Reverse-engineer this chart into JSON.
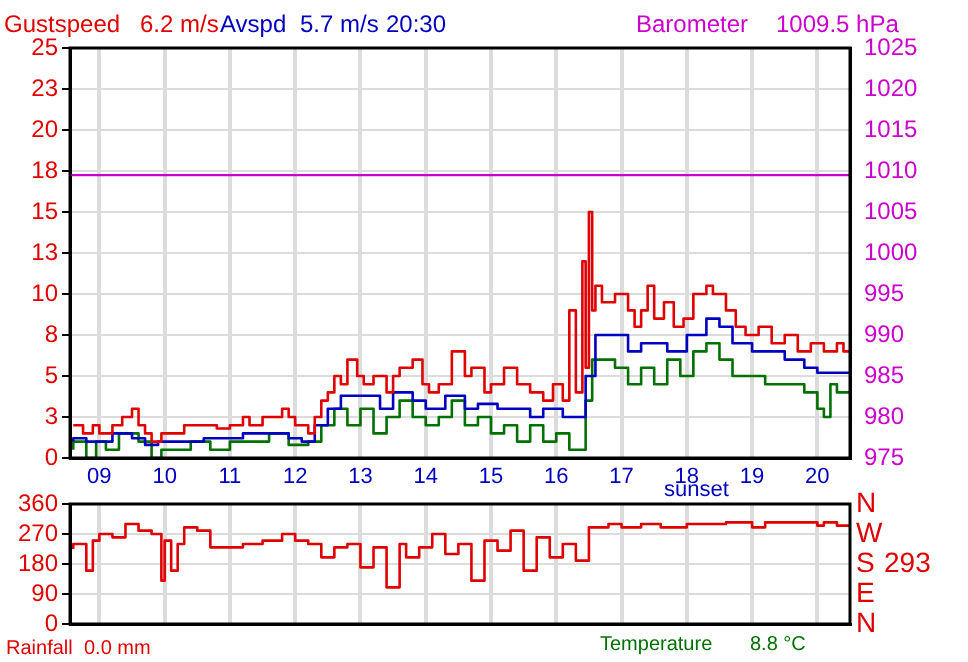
{
  "chart_data": [
    {
      "type": "step",
      "legend": "top left",
      "grid": true,
      "xlim": [
        8.55,
        20.5
      ],
      "xticks": [
        {
          "value": 9,
          "label": "09"
        },
        {
          "value": 10,
          "label": "10"
        },
        11,
        12,
        13,
        14,
        15,
        16,
        17,
        18,
        19,
        20
      ],
      "ylim": [
        0,
        25
      ],
      "yticks": [
        0,
        {
          "value": 2.5,
          "label": "3"
        },
        5,
        {
          "value": 7.5,
          "label": "8"
        },
        10,
        {
          "value": 12.5,
          "label": "13"
        },
        15,
        {
          "value": 17.5,
          "label": "18"
        },
        20,
        {
          "value": 22.5,
          "label": "23"
        },
        25
      ],
      "y2lim": [
        975,
        1025
      ],
      "y2ticks": [
        975,
        980,
        985,
        990,
        995,
        1000,
        1005,
        1010,
        1015,
        1020,
        1025
      ],
      "annotations": [
        "6.2 m/s",
        "5.7 m/s",
        "20:30",
        "1009.5 hPa",
        "sunset"
      ],
      "series": [
        {
          "name": "Gustspeed",
          "color": "#e00000",
          "x": [
            8.6,
            8.75,
            8.9,
            9.0,
            9.2,
            9.35,
            9.5,
            9.6,
            9.7,
            9.8,
            9.95,
            10.1,
            10.3,
            10.5,
            10.8,
            11.0,
            11.2,
            11.3,
            11.5,
            11.8,
            11.9,
            12.0,
            12.2,
            12.3,
            12.4,
            12.5,
            12.6,
            12.7,
            12.8,
            12.95,
            13.05,
            13.2,
            13.4,
            13.5,
            13.6,
            13.8,
            13.95,
            14.05,
            14.2,
            14.4,
            14.6,
            14.7,
            14.9,
            15.0,
            15.2,
            15.4,
            15.6,
            15.8,
            15.95,
            16.1,
            16.2,
            16.3,
            16.4,
            16.45,
            16.5,
            16.55,
            16.6,
            16.7,
            16.9,
            17.1,
            17.2,
            17.3,
            17.4,
            17.5,
            17.65,
            17.8,
            17.95,
            18.1,
            18.3,
            18.4,
            18.6,
            18.75,
            18.9,
            19.1,
            19.3,
            19.5,
            19.7,
            19.9,
            20.1,
            20.3,
            20.4,
            20.5
          ],
          "values": [
            2.0,
            2.0,
            1.5,
            2.0,
            1.5,
            2.0,
            2.5,
            3.0,
            2.0,
            1.5,
            1.0,
            1.5,
            1.5,
            2.0,
            2.0,
            1.8,
            2.0,
            2.5,
            2.0,
            2.5,
            3.0,
            2.5,
            2.0,
            1.5,
            2.5,
            3.5,
            4.0,
            5.0,
            4.5,
            6.0,
            5.0,
            4.5,
            5.0,
            4.0,
            5.0,
            5.5,
            6.0,
            4.5,
            4.0,
            4.5,
            6.5,
            5.0,
            5.5,
            4.0,
            4.5,
            5.5,
            4.5,
            4.0,
            3.5,
            4.5,
            3.5,
            9.0,
            4.0,
            12.0,
            5.5,
            15.0,
            9.0,
            10.5,
            9.5,
            10.0,
            9.0,
            8.0,
            9.0,
            10.5,
            8.5,
            9.5,
            8.0,
            8.5,
            10.0,
            10.5,
            10.0,
            9.0,
            8.0,
            7.5,
            8.0,
            7.0,
            7.5,
            6.5,
            7.0,
            6.5,
            7.0,
            6.5
          ]
        },
        {
          "name": "Avspd",
          "color": "#0000c0",
          "x": [
            8.6,
            8.8,
            9.2,
            9.5,
            9.7,
            9.9,
            10.2,
            10.6,
            11.2,
            11.6,
            11.9,
            12.1,
            12.3,
            12.5,
            12.7,
            12.9,
            13.3,
            13.5,
            13.8,
            14.0,
            14.3,
            14.6,
            14.8,
            15.1,
            15.3,
            15.6,
            15.8,
            16.1,
            16.3,
            16.45,
            16.6,
            16.8,
            17.1,
            17.3,
            17.5,
            17.7,
            18.0,
            18.3,
            18.5,
            18.7,
            19.0,
            19.2,
            19.5,
            19.8,
            20.0,
            20.2,
            20.5
          ],
          "values": [
            1.0,
            1.2,
            1.0,
            1.5,
            1.2,
            0.8,
            1.0,
            1.0,
            1.2,
            1.5,
            1.5,
            1.2,
            1.0,
            2.0,
            3.0,
            3.8,
            3.8,
            3.0,
            4.0,
            3.5,
            3.0,
            3.8,
            3.0,
            3.3,
            3.0,
            3.0,
            2.5,
            3.0,
            2.5,
            2.5,
            5.0,
            7.5,
            7.5,
            6.5,
            7.0,
            7.0,
            6.5,
            7.5,
            8.5,
            8.0,
            7.0,
            6.5,
            6.5,
            6.0,
            5.5,
            5.2,
            5.2
          ]
        },
        {
          "color": "#007000",
          "x": [
            8.6,
            8.8,
            8.95,
            9.1,
            9.3,
            9.6,
            9.8,
            9.95,
            10.1,
            10.4,
            10.7,
            11.0,
            11.3,
            11.6,
            11.9,
            12.2,
            12.4,
            12.6,
            12.8,
            13.0,
            13.2,
            13.4,
            13.6,
            13.8,
            14.0,
            14.2,
            14.4,
            14.6,
            14.8,
            15.0,
            15.2,
            15.4,
            15.6,
            15.8,
            16.0,
            16.2,
            16.45,
            16.55,
            16.7,
            16.9,
            17.1,
            17.3,
            17.5,
            17.7,
            17.9,
            18.1,
            18.3,
            18.5,
            18.7,
            18.9,
            19.2,
            19.5,
            19.8,
            20.0,
            20.1,
            20.2,
            20.3,
            20.5
          ],
          "values": [
            0.5,
            1.0,
            0,
            1.0,
            0.5,
            1.5,
            1.0,
            0,
            0.5,
            0.5,
            1.0,
            0.5,
            1.0,
            1.0,
            1.5,
            0.8,
            1.0,
            2.0,
            3.0,
            2.0,
            3.0,
            1.5,
            2.5,
            3.5,
            2.5,
            2.0,
            2.5,
            3.5,
            2.0,
            2.5,
            1.5,
            2.0,
            1.0,
            2.0,
            1.0,
            1.5,
            0.5,
            3.5,
            6.0,
            6.0,
            5.5,
            4.5,
            5.5,
            4.5,
            6.0,
            5.0,
            6.5,
            7.0,
            6.0,
            5.0,
            5.0,
            4.5,
            4.5,
            4.0,
            3.0,
            2.5,
            4.5,
            4.0
          ]
        },
        {
          "name": "Barometer",
          "type": "line",
          "axis": "y2",
          "color": "#cc00cc",
          "x": [
            8.55,
            20.5
          ],
          "values": [
            1009.5,
            1009.5
          ]
        }
      ]
    },
    {
      "type": "step",
      "grid": true,
      "tick_labels": "y",
      "xlim": [
        8.55,
        20.5
      ],
      "xticks": [
        9,
        10,
        11,
        12,
        13,
        14,
        15,
        16,
        17,
        18,
        19,
        20
      ],
      "ylim": [
        0,
        360
      ],
      "yticks": [
        0,
        90,
        180,
        270,
        360
      ],
      "annotations": [
        "N",
        "W",
        "S",
        "E",
        "N",
        "293",
        "Rainfall",
        "0.0 mm",
        "Temperature",
        "8.8 °C"
      ],
      "series": [
        {
          "color": "#e00000",
          "x": [
            8.6,
            8.8,
            8.9,
            9.0,
            9.2,
            9.4,
            9.6,
            9.8,
            9.95,
            10.0,
            10.1,
            10.2,
            10.3,
            10.5,
            10.7,
            10.9,
            11.2,
            11.5,
            11.8,
            12.0,
            12.2,
            12.4,
            12.6,
            12.8,
            13.0,
            13.2,
            13.4,
            13.6,
            13.7,
            13.9,
            14.1,
            14.3,
            14.5,
            14.7,
            14.9,
            15.1,
            15.3,
            15.5,
            15.7,
            15.9,
            16.1,
            16.3,
            16.5,
            16.55,
            16.8,
            17.0,
            17.3,
            17.6,
            18.0,
            18.3,
            18.6,
            19.0,
            19.2,
            19.4,
            20.0,
            20.1,
            20.3,
            20.5
          ],
          "values": [
            225,
            240,
            160,
            250,
            270,
            260,
            300,
            280,
            270,
            130,
            250,
            160,
            240,
            290,
            280,
            230,
            230,
            240,
            250,
            270,
            250,
            240,
            200,
            230,
            240,
            170,
            230,
            110,
            240,
            200,
            230,
            270,
            210,
            240,
            130,
            250,
            220,
            280,
            160,
            260,
            200,
            240,
            190,
            290,
            290,
            300,
            290,
            300,
            290,
            300,
            300,
            305,
            290,
            305,
            305,
            295,
            305,
            295
          ]
        }
      ]
    }
  ]
}
